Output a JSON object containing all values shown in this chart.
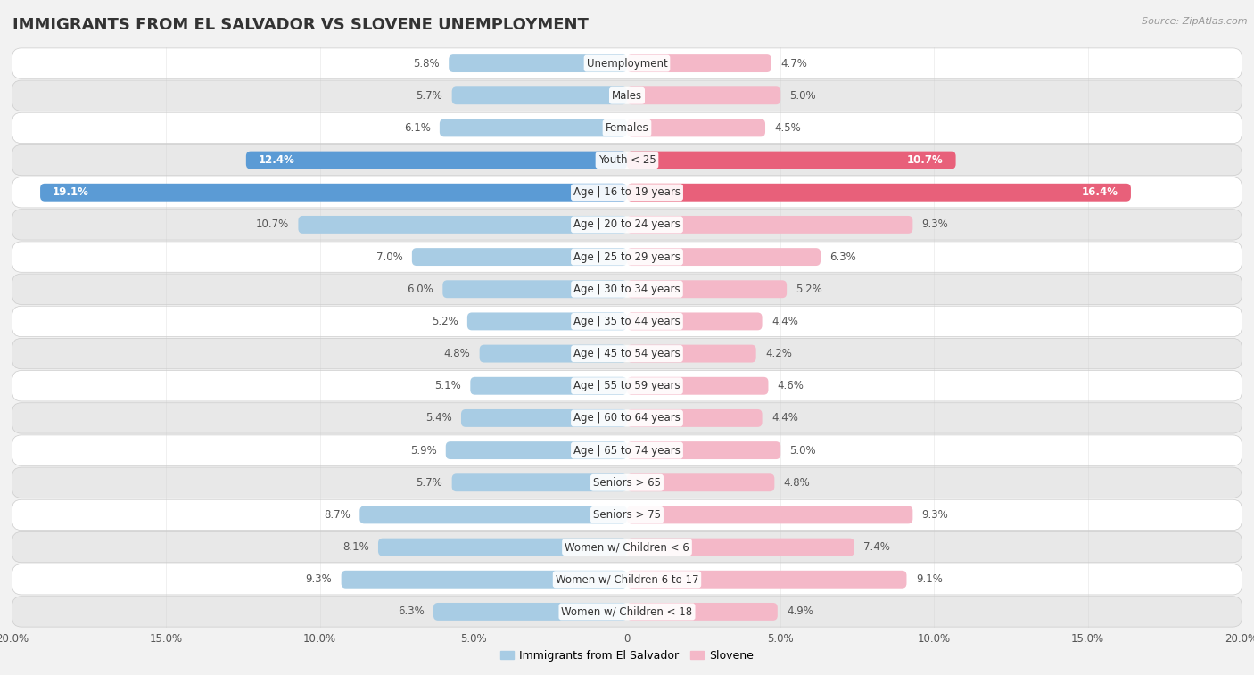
{
  "title": "IMMIGRANTS FROM EL SALVADOR VS SLOVENE UNEMPLOYMENT",
  "source": "Source: ZipAtlas.com",
  "categories": [
    "Unemployment",
    "Males",
    "Females",
    "Youth < 25",
    "Age | 16 to 19 years",
    "Age | 20 to 24 years",
    "Age | 25 to 29 years",
    "Age | 30 to 34 years",
    "Age | 35 to 44 years",
    "Age | 45 to 54 years",
    "Age | 55 to 59 years",
    "Age | 60 to 64 years",
    "Age | 65 to 74 years",
    "Seniors > 65",
    "Seniors > 75",
    "Women w/ Children < 6",
    "Women w/ Children 6 to 17",
    "Women w/ Children < 18"
  ],
  "left_values": [
    5.8,
    5.7,
    6.1,
    12.4,
    19.1,
    10.7,
    7.0,
    6.0,
    5.2,
    4.8,
    5.1,
    5.4,
    5.9,
    5.7,
    8.7,
    8.1,
    9.3,
    6.3
  ],
  "right_values": [
    4.7,
    5.0,
    4.5,
    10.7,
    16.4,
    9.3,
    6.3,
    5.2,
    4.4,
    4.2,
    4.6,
    4.4,
    5.0,
    4.8,
    9.3,
    7.4,
    9.1,
    4.9
  ],
  "left_color_normal": "#a8cce4",
  "right_color_normal": "#f4b8c8",
  "left_color_highlight": "#5b9bd5",
  "right_color_highlight": "#e8607a",
  "highlight_rows": [
    3,
    4
  ],
  "background_color": "#f2f2f2",
  "row_bg_even": "#ffffff",
  "row_bg_odd": "#e8e8e8",
  "axis_max": 20.0,
  "left_label": "Immigrants from El Salvador",
  "right_label": "Slovene",
  "title_fontsize": 13,
  "cat_fontsize": 8.5,
  "value_fontsize": 8.5,
  "bar_height": 0.55
}
